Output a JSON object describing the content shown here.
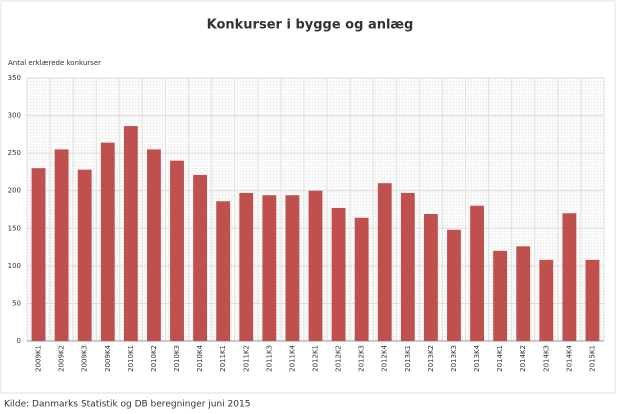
{
  "chart_data": {
    "type": "bar",
    "title": "Konkurser i bygge og anlæg",
    "y_label": "Antal erklærede konkurser",
    "source": "Kilde: Danmarks Statistik og DB beregninger juni 2015",
    "categories": [
      "2009K1",
      "2009K2",
      "2009K3",
      "2009K4",
      "2010K1",
      "2010K2",
      "2010K3",
      "2010K4",
      "2011K1",
      "2011K2",
      "2011K3",
      "2011K4",
      "2012K1",
      "2012K2",
      "2012K3",
      "2012K4",
      "2013K1",
      "2013K2",
      "2013K3",
      "2013K4",
      "2014K1",
      "2014K2",
      "2014K3",
      "2014K4",
      "2015K1"
    ],
    "values": [
      230,
      255,
      228,
      264,
      286,
      255,
      240,
      221,
      186,
      197,
      194,
      194,
      200,
      177,
      164,
      210,
      197,
      169,
      148,
      180,
      120,
      126,
      108,
      170,
      108
    ],
    "color": "#c0504d",
    "ylim": [
      0,
      350
    ],
    "yticks": [
      0,
      50,
      100,
      150,
      200,
      250,
      300,
      350
    ],
    "grid": true
  }
}
